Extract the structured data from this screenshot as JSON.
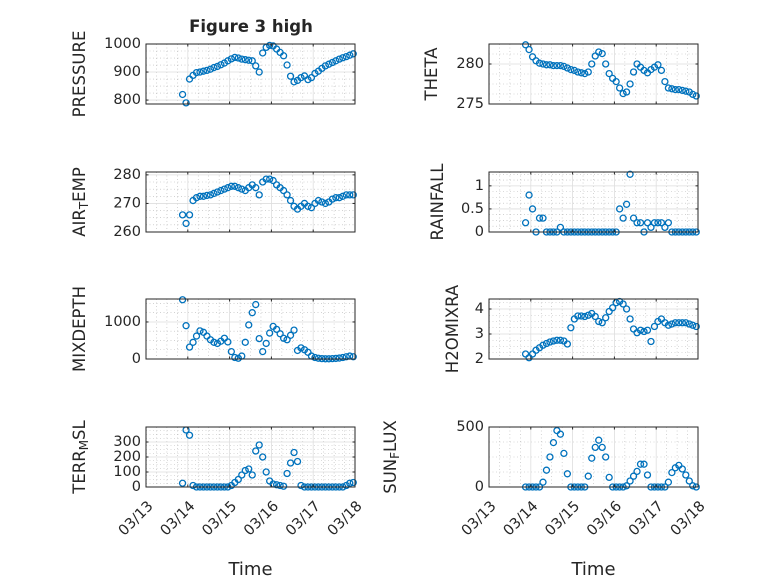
{
  "figure": {
    "window_title": "Figure 3 high"
  },
  "chart_data": [
    {
      "id": "pressure",
      "type": "scatter",
      "title": "Figure 3 high",
      "ylabel": {
        "pre": "PRESSURE",
        "sub": "",
        "post": ""
      },
      "xlabel": "",
      "xlim": [
        "03/13",
        "03/18"
      ],
      "xticks": [
        "03/13",
        "03/14",
        "03/15",
        "03/16",
        "03/17",
        "03/18"
      ],
      "show_xticklabels": false,
      "ylim": [
        786,
        1000
      ],
      "yticks": [
        800,
        900,
        1000
      ],
      "grid": "major and minor",
      "marker": "circle",
      "color": "#0072BD",
      "x_start": "03/13 21:00",
      "x_step_hours": 2,
      "values": [
        820,
        790,
        875,
        888,
        898,
        900,
        903,
        906,
        910,
        916,
        920,
        926,
        932,
        940,
        947,
        952,
        950,
        946,
        944,
        942,
        940,
        922,
        900,
        968,
        988,
        995,
        993,
        982,
        970,
        958,
        925,
        885,
        865,
        870,
        880,
        886,
        873,
        880,
        895,
        903,
        913,
        922,
        928,
        934,
        940,
        946,
        951,
        955,
        960,
        965
      ]
    },
    {
      "id": "theta",
      "type": "scatter",
      "title": "",
      "ylabel": {
        "pre": "THETA",
        "sub": "",
        "post": ""
      },
      "xlabel": "",
      "xlim": [
        "03/13",
        "03/18"
      ],
      "xticks": [
        "03/13",
        "03/14",
        "03/15",
        "03/16",
        "03/17",
        "03/18"
      ],
      "show_xticklabels": false,
      "ylim": [
        275,
        282.5
      ],
      "yticks": [
        275,
        280
      ],
      "grid": "major and minor",
      "marker": "circle",
      "color": "#0072BD",
      "x_start": "03/13 21:00",
      "x_step_hours": 2,
      "values": [
        282.4,
        281.8,
        280.9,
        280.4,
        280.1,
        280.0,
        279.9,
        279.9,
        279.8,
        279.8,
        279.8,
        279.7,
        279.5,
        279.3,
        279.2,
        279.0,
        278.9,
        278.8,
        279.0,
        280.0,
        281.0,
        281.5,
        281.3,
        280.0,
        278.8,
        278.2,
        277.8,
        277.0,
        276.3,
        276.5,
        277.5,
        279.0,
        280.0,
        279.6,
        279.2,
        278.9,
        279.3,
        279.6,
        279.9,
        279.2,
        277.8,
        277.0,
        276.9,
        276.8,
        276.8,
        276.7,
        276.6,
        276.5,
        276.2,
        276.0
      ]
    },
    {
      "id": "air-temp",
      "type": "scatter",
      "title": "",
      "ylabel": {
        "pre": "AIR",
        "sub": "T",
        "post": "EMP"
      },
      "xlabel": "",
      "xlim": [
        "03/13",
        "03/18"
      ],
      "xticks": [
        "03/13",
        "03/14",
        "03/15",
        "03/16",
        "03/17",
        "03/18"
      ],
      "show_xticklabels": false,
      "ylim": [
        260,
        281
      ],
      "yticks": [
        260,
        270,
        280
      ],
      "grid": "major and minor",
      "marker": "circle",
      "color": "#0072BD",
      "x_start": "03/13 21:00",
      "x_step_hours": 2,
      "values": [
        266.0,
        263.0,
        266.0,
        271.0,
        272.0,
        272.5,
        272.5,
        272.8,
        273.0,
        273.5,
        274.0,
        274.5,
        275.0,
        275.5,
        276.0,
        276.0,
        275.5,
        275.0,
        274.5,
        275.5,
        276.5,
        275.5,
        273.0,
        277.5,
        278.5,
        278.5,
        278.0,
        276.5,
        275.5,
        274.5,
        273.0,
        271.0,
        269.0,
        268.0,
        269.0,
        270.0,
        269.0,
        268.5,
        270.0,
        271.0,
        270.5,
        270.0,
        270.5,
        271.5,
        272.0,
        272.0,
        272.5,
        273.0,
        273.0,
        273.0
      ]
    },
    {
      "id": "rainfall",
      "type": "scatter",
      "title": "",
      "ylabel": {
        "pre": "RAINFALL",
        "sub": "",
        "post": ""
      },
      "xlabel": "",
      "xlim": [
        "03/13",
        "03/18"
      ],
      "xticks": [
        "03/13",
        "03/14",
        "03/15",
        "03/16",
        "03/17",
        "03/18"
      ],
      "show_xticklabels": false,
      "ylim": [
        0,
        1.3
      ],
      "yticks": [
        0,
        0.5,
        1
      ],
      "grid": "major and minor",
      "marker": "circle",
      "color": "#0072BD",
      "x_start": "03/13 21:00",
      "x_step_hours": 2,
      "values": [
        0.2,
        0.8,
        0.5,
        0,
        0.3,
        0.3,
        0,
        0,
        0,
        0,
        0.1,
        0,
        0,
        0,
        0,
        0,
        0,
        0,
        0,
        0,
        0,
        0,
        0,
        0,
        0,
        0,
        0,
        0.5,
        0.3,
        0.6,
        1.25,
        0.3,
        0.2,
        0.2,
        0,
        0.2,
        0.1,
        0.2,
        0.2,
        0.2,
        0.1,
        0.2,
        0,
        0,
        0,
        0,
        0,
        0,
        0,
        0
      ]
    },
    {
      "id": "mixdepth",
      "type": "scatter",
      "title": "",
      "ylabel": {
        "pre": "MIXDEPTH",
        "sub": "",
        "post": ""
      },
      "xlabel": "",
      "xlim": [
        "03/13",
        "03/18"
      ],
      "xticks": [
        "03/13",
        "03/14",
        "03/15",
        "03/16",
        "03/17",
        "03/18"
      ],
      "show_xticklabels": false,
      "ylim": [
        0,
        1620
      ],
      "yticks": [
        0,
        1000
      ],
      "grid": "major and minor",
      "marker": "circle",
      "color": "#0072BD",
      "x_start": "03/13 21:00",
      "x_step_hours": 2,
      "values": [
        1600,
        900,
        320,
        450,
        620,
        760,
        720,
        620,
        520,
        450,
        420,
        480,
        560,
        460,
        200,
        40,
        20,
        80,
        450,
        920,
        1250,
        1470,
        550,
        200,
        420,
        700,
        880,
        800,
        680,
        560,
        520,
        640,
        780,
        230,
        300,
        250,
        180,
        80,
        40,
        20,
        10,
        5,
        5,
        10,
        15,
        25,
        40,
        60,
        80,
        60
      ]
    },
    {
      "id": "h2omixra",
      "type": "scatter",
      "title": "",
      "ylabel": {
        "pre": "H2OMIXRA",
        "sub": "",
        "post": ""
      },
      "xlabel": "",
      "xlim": [
        "03/13",
        "03/18"
      ],
      "xticks": [
        "03/13",
        "03/14",
        "03/15",
        "03/16",
        "03/17",
        "03/18"
      ],
      "show_xticklabels": false,
      "ylim": [
        2,
        4.4
      ],
      "yticks": [
        2,
        3,
        4
      ],
      "grid": "major and minor",
      "marker": "circle",
      "color": "#0072BD",
      "x_start": "03/13 21:00",
      "x_step_hours": 2,
      "values": [
        2.2,
        2.05,
        2.2,
        2.35,
        2.45,
        2.55,
        2.62,
        2.68,
        2.72,
        2.75,
        2.75,
        2.72,
        2.6,
        3.25,
        3.6,
        3.72,
        3.72,
        3.7,
        3.75,
        3.82,
        3.7,
        3.5,
        3.45,
        3.65,
        3.9,
        4.05,
        4.25,
        4.3,
        4.2,
        4.0,
        3.6,
        3.2,
        3.05,
        3.15,
        3.1,
        3.15,
        2.7,
        3.3,
        3.5,
        3.6,
        3.45,
        3.35,
        3.4,
        3.45,
        3.45,
        3.45,
        3.45,
        3.4,
        3.35,
        3.3
      ]
    },
    {
      "id": "terr-msl",
      "type": "scatter",
      "title": "",
      "ylabel": {
        "pre": "TERR",
        "sub": "M",
        "post": "SL"
      },
      "xlabel": "Time",
      "xlim": [
        "03/13",
        "03/18"
      ],
      "xticks": [
        "03/13",
        "03/14",
        "03/15",
        "03/16",
        "03/17",
        "03/18"
      ],
      "show_xticklabels": true,
      "ylim": [
        0,
        400
      ],
      "yticks": [
        0,
        100,
        200,
        300
      ],
      "grid": "major and minor",
      "marker": "circle",
      "color": "#0072BD",
      "x_start": "03/13 21:00",
      "x_step_hours": 2,
      "values": [
        25,
        380,
        345,
        10,
        0,
        0,
        0,
        0,
        0,
        0,
        0,
        0,
        0,
        0,
        10,
        30,
        50,
        80,
        110,
        120,
        80,
        240,
        280,
        200,
        100,
        40,
        20,
        15,
        10,
        5,
        90,
        160,
        230,
        170,
        10,
        0,
        0,
        0,
        0,
        0,
        0,
        0,
        0,
        0,
        0,
        0,
        0,
        10,
        25,
        30
      ]
    },
    {
      "id": "sun-flux",
      "type": "scatter",
      "title": "",
      "ylabel": {
        "pre": "SUN",
        "sub": "F",
        "post": "LUX"
      },
      "xlabel": "Time",
      "xlim": [
        "03/13",
        "03/18"
      ],
      "xticks": [
        "03/13",
        "03/14",
        "03/15",
        "03/16",
        "03/17",
        "03/18"
      ],
      "show_xticklabels": true,
      "ylim": [
        0,
        500
      ],
      "yticks": [
        0,
        500
      ],
      "grid": "major and minor",
      "marker": "circle",
      "color": "#0072BD",
      "x_start": "03/13 21:00",
      "x_step_hours": 2,
      "values": [
        0,
        0,
        0,
        0,
        0,
        40,
        140,
        250,
        370,
        470,
        440,
        280,
        110,
        0,
        0,
        0,
        0,
        0,
        90,
        240,
        330,
        390,
        330,
        250,
        80,
        0,
        0,
        0,
        0,
        10,
        50,
        90,
        130,
        190,
        190,
        100,
        0,
        0,
        0,
        0,
        0,
        40,
        120,
        160,
        180,
        150,
        100,
        50,
        10,
        0
      ]
    }
  ]
}
